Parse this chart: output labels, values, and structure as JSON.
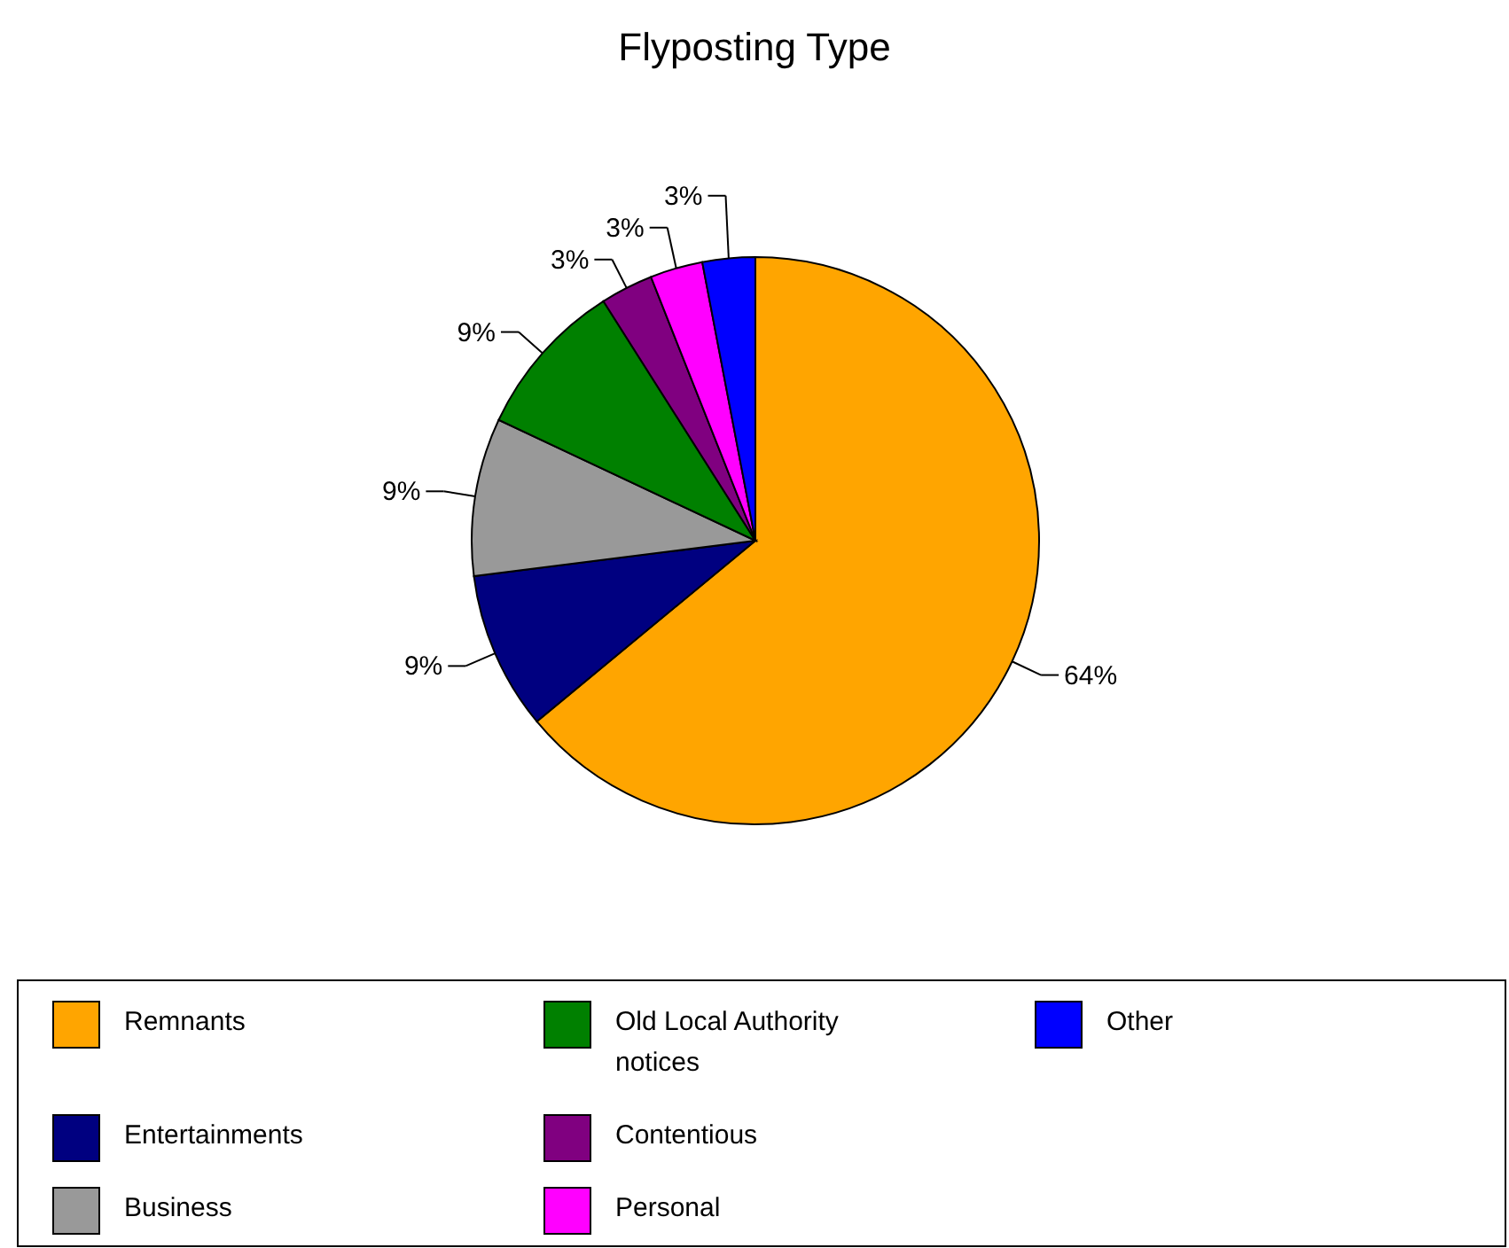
{
  "chart_data": {
    "type": "pie",
    "title": "Flyposting Type",
    "categories": [
      "Remnants",
      "Entertainments",
      "Business",
      "Old Local Authority notices",
      "Contentious",
      "Personal",
      "Other"
    ],
    "values": [
      64,
      9,
      9,
      9,
      3,
      3,
      3
    ],
    "colors": [
      "#ffa500",
      "#000080",
      "#999999",
      "#008000",
      "#800080",
      "#ff00ff",
      "#0000ff"
    ],
    "value_labels": [
      "64%",
      "9%",
      "9%",
      "9%",
      "3%",
      "3%",
      "3%"
    ],
    "legend": "bottom"
  }
}
